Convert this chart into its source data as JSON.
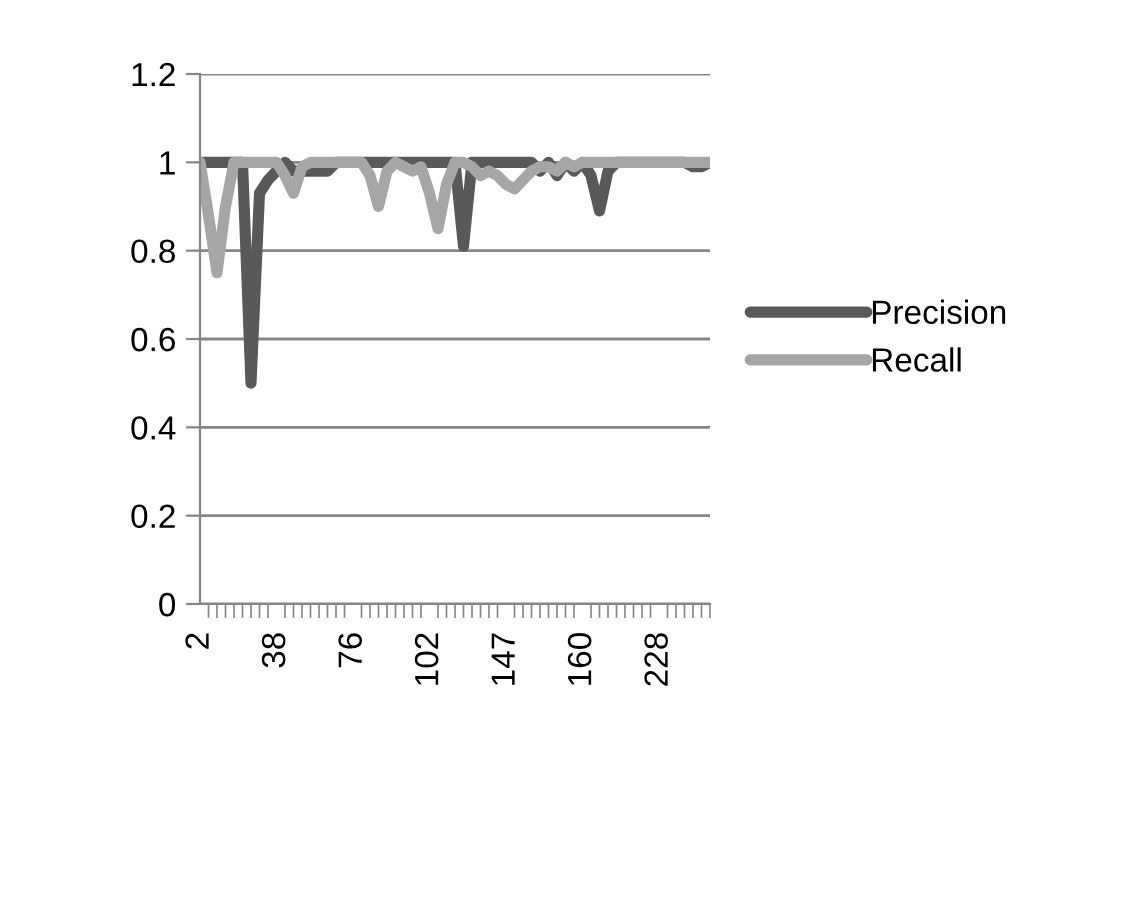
{
  "chart_data": {
    "type": "line",
    "categories": [
      "2",
      null,
      null,
      null,
      null,
      null,
      null,
      null,
      null,
      "38",
      null,
      null,
      null,
      null,
      null,
      null,
      null,
      null,
      "76",
      null,
      null,
      null,
      null,
      null,
      null,
      null,
      null,
      "102",
      null,
      null,
      null,
      null,
      null,
      null,
      null,
      null,
      "147",
      null,
      null,
      null,
      null,
      null,
      null,
      null,
      null,
      "160",
      null,
      null,
      null,
      null,
      null,
      null,
      null,
      null,
      "228",
      null,
      null,
      null,
      null,
      null,
      null
    ],
    "series": [
      {
        "name": "Precision",
        "color": "#595959",
        "values": [
          1,
          1,
          1,
          1,
          1,
          1,
          0.5,
          0.93,
          0.96,
          0.98,
          1,
          0.98,
          0.98,
          0.98,
          0.98,
          0.98,
          1,
          1,
          1,
          1,
          1,
          1,
          1,
          1,
          1,
          1,
          1,
          1,
          1,
          1,
          1,
          0.81,
          1,
          1,
          1,
          1,
          1,
          1,
          1,
          1,
          0.98,
          1,
          0.97,
          1,
          0.98,
          1,
          0.97,
          0.89,
          0.98,
          1,
          1,
          1,
          1,
          1,
          1,
          1,
          1,
          1,
          0.99,
          0.99,
          1
        ]
      },
      {
        "name": "Recall",
        "color": "#a6a6a6",
        "values": [
          1,
          0.88,
          0.75,
          0.9,
          1,
          1,
          1,
          1,
          1,
          1,
          0.97,
          0.93,
          0.99,
          1,
          1,
          1,
          1,
          1,
          1,
          1,
          0.97,
          0.9,
          0.98,
          1,
          0.99,
          0.98,
          0.99,
          0.93,
          0.85,
          0.95,
          1,
          1,
          0.99,
          0.97,
          0.98,
          0.97,
          0.95,
          0.94,
          0.96,
          0.98,
          0.99,
          0.99,
          0.98,
          1,
          0.99,
          1,
          1,
          1,
          1,
          1,
          1,
          1,
          1,
          1,
          1,
          1,
          1,
          1,
          1,
          1,
          1
        ]
      }
    ],
    "ylim": [
      0,
      1.2
    ],
    "yticks": [
      0,
      0.2,
      0.4,
      0.6,
      0.8,
      1,
      1.2
    ],
    "grid": "y",
    "legend": "right",
    "line_style": "solid",
    "marker": "none"
  }
}
